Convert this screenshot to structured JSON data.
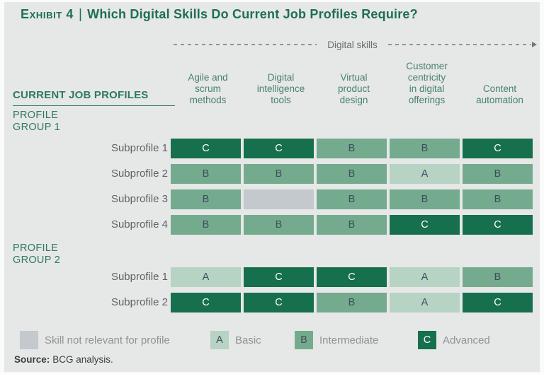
{
  "title": {
    "exhibit": "Exhibit 4",
    "separator": "|",
    "text": "Which Digital Skills Do Current Job Profiles Require?"
  },
  "axis": {
    "label": "Digital skills"
  },
  "table": {
    "row_header": "CURRENT JOB PROFILES",
    "columns": [
      "Agile and\nscrum\nmethods",
      "Digital\nintelligence\ntools",
      "Virtual\nproduct\ndesign",
      "Customer\ncentricity\nin digital\nofferings",
      "Content\nautomation"
    ],
    "groups": [
      {
        "label": "PROFILE\nGROUP 1",
        "rows": [
          {
            "label": "Subprofile 1",
            "cells": [
              "C",
              "C",
              "B",
              "B",
              "C"
            ]
          },
          {
            "label": "Subprofile 2",
            "cells": [
              "B",
              "B",
              "B",
              "A",
              "B"
            ]
          },
          {
            "label": "Subprofile 3",
            "cells": [
              "B",
              null,
              "B",
              "B",
              "B"
            ]
          },
          {
            "label": "Subprofile 4",
            "cells": [
              "B",
              "B",
              "B",
              "C",
              "C"
            ]
          }
        ]
      },
      {
        "label": "PROFILE\nGROUP 2",
        "rows": [
          {
            "label": "Subprofile 1",
            "cells": [
              "A",
              "C",
              "C",
              "A",
              "B"
            ]
          },
          {
            "label": "Subprofile 2",
            "cells": [
              "C",
              "C",
              "B",
              "A",
              "C"
            ]
          }
        ]
      }
    ]
  },
  "legend": [
    {
      "letter": null,
      "key": "not_relevant",
      "label": "Skill not relevant for profile"
    },
    {
      "letter": "A",
      "key": "basic",
      "label": "Basic"
    },
    {
      "letter": "B",
      "key": "intermediate",
      "label": "Intermediate"
    },
    {
      "letter": "C",
      "key": "advanced",
      "label": "Advanced"
    }
  ],
  "source": {
    "label": "Source:",
    "text": "BCG analysis."
  },
  "colors": {
    "advanced": "#17704d",
    "intermediate": "#74ab8e",
    "basic": "#b6d3c3",
    "not_relevant": "#c3c9cd",
    "title_green": "#1d6f55",
    "header_green": "#47826b",
    "panel_background": "#e6e7e7",
    "letter_dark": "#3d4f5d",
    "letter_on_advanced": "#ffffff"
  },
  "chart_data": {
    "type": "heatmap",
    "title": "Exhibit 4 | Which Digital Skills Do Current Job Profiles Require?",
    "x_label": "Digital skills",
    "y_label": "CURRENT JOB PROFILES",
    "columns": [
      "Agile and scrum methods",
      "Digital intelligence tools",
      "Virtual product design",
      "Customer centricity in digital offerings",
      "Content automation"
    ],
    "rows": [
      {
        "group": "Profile Group 1",
        "name": "Subprofile 1",
        "values": [
          "C",
          "C",
          "B",
          "B",
          "C"
        ]
      },
      {
        "group": "Profile Group 1",
        "name": "Subprofile 2",
        "values": [
          "B",
          "B",
          "B",
          "A",
          "B"
        ]
      },
      {
        "group": "Profile Group 1",
        "name": "Subprofile 3",
        "values": [
          "B",
          null,
          "B",
          "B",
          "B"
        ]
      },
      {
        "group": "Profile Group 1",
        "name": "Subprofile 4",
        "values": [
          "B",
          "B",
          "B",
          "C",
          "C"
        ]
      },
      {
        "group": "Profile Group 2",
        "name": "Subprofile 1",
        "values": [
          "A",
          "C",
          "C",
          "A",
          "B"
        ]
      },
      {
        "group": "Profile Group 2",
        "name": "Subprofile 2",
        "values": [
          "C",
          "C",
          "B",
          "A",
          "C"
        ]
      }
    ],
    "value_legend": {
      "A": "Basic",
      "B": "Intermediate",
      "C": "Advanced",
      "null": "Skill not relevant for profile"
    },
    "legend_position": "bottom",
    "source": "BCG analysis."
  }
}
